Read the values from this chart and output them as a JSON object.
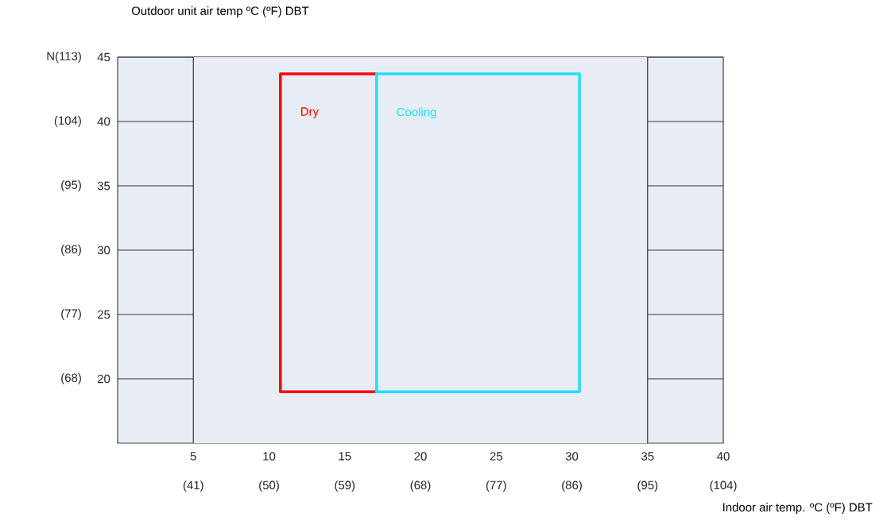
{
  "chart_data": {
    "type": "line",
    "ylabel": "Outdoor unit air temp ºC (ºF) DBT",
    "xlabel": "Indoor air temp. ºC (ºF) DBT",
    "xlim": [
      0,
      40
    ],
    "ylim": [
      15,
      45
    ],
    "xticks": [
      5,
      10,
      15,
      20,
      25,
      30,
      35,
      40
    ],
    "x2lim": [
      32,
      104
    ],
    "x2ticks": [
      {
        "value": 41,
        "label": "(41)"
      },
      {
        "value": 50,
        "label": "(50)"
      },
      {
        "value": 59,
        "label": "(59)"
      },
      {
        "value": 68,
        "label": "(68)"
      },
      {
        "value": 77,
        "label": "(77)"
      },
      {
        "value": 86,
        "label": "(86)"
      },
      {
        "value": 95,
        "label": "(95)"
      },
      {
        "value": 104,
        "label": "(104)"
      }
    ],
    "yticks": [
      20,
      25,
      30,
      35,
      40,
      45
    ],
    "y2lim": [
      59,
      113
    ],
    "y2ticks": [
      {
        "value": 68,
        "label": "(68)"
      },
      {
        "value": 77,
        "label": "(77)"
      },
      {
        "value": 86,
        "label": "(86)"
      },
      {
        "value": 95,
        "label": "(95)"
      },
      {
        "value": 104,
        "label": "(104)"
      },
      {
        "value": 113,
        "label": "N(113)"
      }
    ],
    "grid": "y",
    "bands": [
      {
        "axis": "x",
        "from": 5,
        "to": 35,
        "color": "#e8ecf5"
      }
    ],
    "ref_lines": [
      {
        "axis": "x",
        "value": 5,
        "color": "#333333"
      },
      {
        "axis": "x",
        "value": 35,
        "color": "#333333"
      }
    ],
    "series": [
      {
        "name": "Dry",
        "color": "#ff0000",
        "x": [
          17.1,
          10.75,
          10.75,
          17.1
        ],
        "values": [
          43.7,
          43.7,
          19,
          19
        ]
      },
      {
        "name": "Cooling",
        "color": "#1ee0f5",
        "x": [
          17.1,
          30.5,
          30.5,
          17.1
        ],
        "values": [
          43.7,
          43.7,
          19,
          19
        ]
      },
      {
        "color": "#1ee0f5",
        "x": [
          17.1,
          17.1
        ],
        "values": [
          19,
          43.7
        ]
      }
    ]
  }
}
